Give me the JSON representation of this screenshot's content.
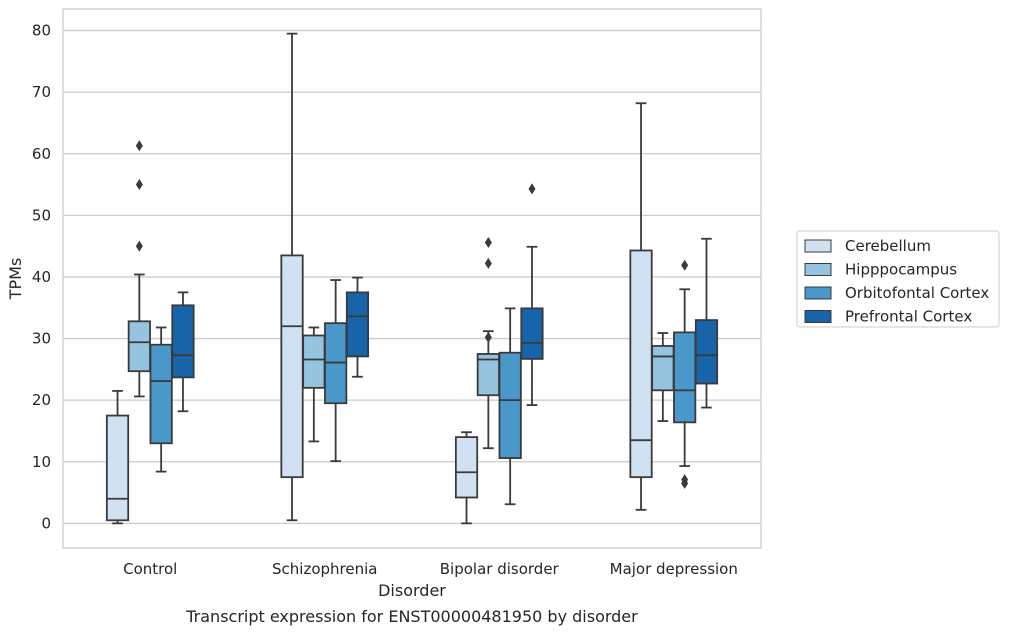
{
  "caption": "Transcript expression for ENST00000481950 by disorder",
  "chart_data": {
    "type": "box",
    "xlabel": "Disorder",
    "ylabel": "TPMs",
    "ylim": [
      -4,
      83.5
    ],
    "yticks": [
      0,
      10,
      20,
      30,
      40,
      50,
      60,
      70,
      80
    ],
    "grid": true,
    "legend_position": "right",
    "categories": [
      "Control",
      "Schizophrenia",
      "Bipolar disorder",
      "Major depression"
    ],
    "series": [
      {
        "name": "Cerebellum",
        "color": "#d0e1f2",
        "boxes": [
          {
            "whisker_low": 0,
            "q1": 0.5,
            "median": 4,
            "q3": 17.5,
            "whisker_high": 21.5,
            "outliers": []
          },
          {
            "whisker_low": 0.5,
            "q1": 7.5,
            "median": 32,
            "q3": 43.5,
            "whisker_high": 79.5,
            "outliers": []
          },
          {
            "whisker_low": 0,
            "q1": 4.2,
            "median": 8.3,
            "q3": 14,
            "whisker_high": 14.8,
            "outliers": []
          },
          {
            "whisker_low": 2.2,
            "q1": 7.5,
            "median": 13.5,
            "q3": 44.3,
            "whisker_high": 68.2,
            "outliers": []
          }
        ]
      },
      {
        "name": "Hipppocampus",
        "color": "#94c4df",
        "boxes": [
          {
            "whisker_low": 20.6,
            "q1": 24.7,
            "median": 29.4,
            "q3": 32.8,
            "whisker_high": 40.4,
            "outliers": [
              45,
              55,
              61.3
            ]
          },
          {
            "whisker_low": 13.3,
            "q1": 22,
            "median": 26.6,
            "q3": 30.5,
            "whisker_high": 31.8,
            "outliers": []
          },
          {
            "whisker_low": 12.2,
            "q1": 20.8,
            "median": 26.6,
            "q3": 27.5,
            "whisker_high": 31.2,
            "outliers": [
              30.2,
              42.2,
              45.6
            ]
          },
          {
            "whisker_low": 16.6,
            "q1": 21.6,
            "median": 27.1,
            "q3": 28.8,
            "whisker_high": 30.9,
            "outliers": []
          }
        ]
      },
      {
        "name": "Orbitofontal Cortex",
        "color": "#4a98c9",
        "boxes": [
          {
            "whisker_low": 8.4,
            "q1": 13,
            "median": 23.1,
            "q3": 29,
            "whisker_high": 31.8,
            "outliers": []
          },
          {
            "whisker_low": 10.1,
            "q1": 19.5,
            "median": 26.1,
            "q3": 32.5,
            "whisker_high": 39.5,
            "outliers": []
          },
          {
            "whisker_low": 3.1,
            "q1": 10.6,
            "median": 20,
            "q3": 27.7,
            "whisker_high": 34.9,
            "outliers": []
          },
          {
            "whisker_low": 9.3,
            "q1": 16.4,
            "median": 21.6,
            "q3": 31,
            "whisker_high": 38,
            "outliers": [
              6.5,
              7.1,
              41.9
            ]
          }
        ]
      },
      {
        "name": "Prefrontal Cortex",
        "color": "#1764ab",
        "boxes": [
          {
            "whisker_low": 18.2,
            "q1": 23.7,
            "median": 27.3,
            "q3": 35.4,
            "whisker_high": 37.5,
            "outliers": []
          },
          {
            "whisker_low": 23.8,
            "q1": 27.1,
            "median": 33.6,
            "q3": 37.5,
            "whisker_high": 39.9,
            "outliers": []
          },
          {
            "whisker_low": 19.2,
            "q1": 26.7,
            "median": 29.3,
            "q3": 34.9,
            "whisker_high": 44.9,
            "outliers": [
              54.3
            ]
          },
          {
            "whisker_low": 18.8,
            "q1": 22.7,
            "median": 27.3,
            "q3": 33,
            "whisker_high": 46.2,
            "outliers": []
          }
        ]
      }
    ]
  }
}
